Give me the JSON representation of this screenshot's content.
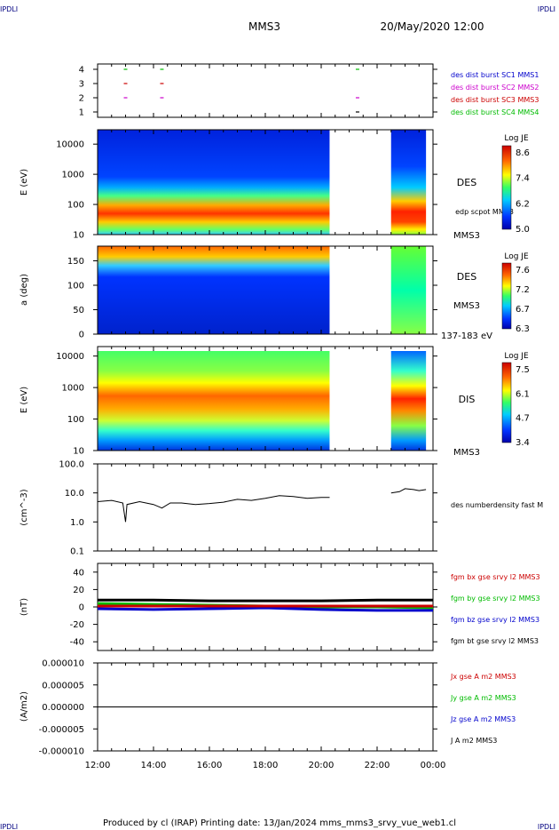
{
  "header": {
    "corner_tl": "IPDLI",
    "corner_tr": "IPDLI",
    "corner_bl": "IPDLI",
    "corner_br": "IPDLI",
    "title": "MMS3",
    "datetime": "20/May/2020 12:00"
  },
  "footer": "Produced by cl (IRAP)   Printing date: 13/Jan/2024   mms_mms3_srvy_vue_web1.cl",
  "time_axis": [
    "12:00",
    "14:00",
    "16:00",
    "18:00",
    "20:00",
    "22:00",
    "00:00"
  ],
  "chart_data": [
    {
      "type": "scatter",
      "yticks": [
        "1",
        "2",
        "3",
        "4"
      ],
      "legend": [
        {
          "text": "des dist burst SC1 MMS1",
          "color": "#0000cc"
        },
        {
          "text": "des dist burst SC2 MMS2",
          "color": "#cc00cc"
        },
        {
          "text": "des dist burst SC3 MMS3",
          "color": "#cc0000"
        },
        {
          "text": "des dist burst SC4 MMS4",
          "color": "#00bb00"
        }
      ],
      "marks": [
        {
          "x": 13.0,
          "y": 4,
          "color": "#00bb00"
        },
        {
          "x": 14.3,
          "y": 4,
          "color": "#00bb00"
        },
        {
          "x": 21.3,
          "y": 4,
          "color": "#00bb00"
        },
        {
          "x": 13.0,
          "y": 3,
          "color": "#cc0000"
        },
        {
          "x": 14.3,
          "y": 3,
          "color": "#cc0000"
        },
        {
          "x": 13.0,
          "y": 2,
          "color": "#cc00cc"
        },
        {
          "x": 14.3,
          "y": 2,
          "color": "#cc00cc"
        },
        {
          "x": 21.3,
          "y": 2,
          "color": "#cc00cc"
        },
        {
          "x": 21.3,
          "y": 1,
          "color": "#000000"
        }
      ]
    },
    {
      "type": "heatmap",
      "ylabel": "E (eV)",
      "yticks": [
        "10000",
        "1000",
        "100",
        "10"
      ],
      "ylim": [
        10,
        30000
      ],
      "log": true,
      "side_labels": [
        "DES",
        "edp scpot MMS3",
        "MMS3"
      ],
      "colorbar": {
        "title": "Log JE",
        "ticks": [
          "8.6",
          "7.4",
          "6.2",
          "5.0"
        ]
      },
      "data_ranges": [
        [
          12.0,
          20.3
        ],
        [
          22.5,
          23.75
        ]
      ]
    },
    {
      "type": "heatmap",
      "ylabel": "a (deg)",
      "yticks": [
        "150",
        "100",
        "50",
        "0"
      ],
      "ylim": [
        0,
        180
      ],
      "side_labels": [
        "DES",
        "MMS3",
        "137-183 eV"
      ],
      "colorbar": {
        "title": "Log JE",
        "ticks": [
          "7.6",
          "7.2",
          "6.7",
          "6.3"
        ]
      },
      "data_ranges": [
        [
          12.0,
          20.3
        ],
        [
          22.5,
          23.75
        ]
      ]
    },
    {
      "type": "heatmap",
      "ylabel": "E (eV)",
      "yticks": [
        "10000",
        "1000",
        "100",
        "10"
      ],
      "ylim": [
        10,
        20000
      ],
      "log": true,
      "side_labels": [
        "DIS",
        "MMS3"
      ],
      "colorbar": {
        "title": "Log JE",
        "ticks": [
          "7.5",
          "6.1",
          "4.7",
          "3.4"
        ]
      },
      "data_ranges": [
        [
          12.0,
          20.3
        ],
        [
          22.5,
          23.75
        ]
      ]
    },
    {
      "type": "line",
      "ylabel": "(cm^-3)",
      "yticks": [
        "100.0",
        "10.0",
        "1.0",
        "0.1"
      ],
      "ylim": [
        0.1,
        100
      ],
      "log": true,
      "legend": [
        {
          "text": "des numberdensity fast M",
          "color": "#000000"
        }
      ],
      "series": [
        {
          "color": "#000000",
          "points": [
            [
              12.0,
              5.0
            ],
            [
              12.5,
              5.5
            ],
            [
              12.9,
              4.5
            ],
            [
              13.0,
              1.0
            ],
            [
              13.05,
              4.0
            ],
            [
              13.5,
              5.0
            ],
            [
              14.0,
              4.0
            ],
            [
              14.3,
              3.0
            ],
            [
              14.6,
              4.5
            ],
            [
              15.0,
              4.5
            ],
            [
              15.5,
              4.0
            ],
            [
              16.0,
              4.3
            ],
            [
              16.5,
              4.8
            ],
            [
              17.0,
              6.0
            ],
            [
              17.5,
              5.5
            ],
            [
              18.0,
              6.5
            ],
            [
              18.5,
              8.0
            ],
            [
              19.0,
              7.5
            ],
            [
              19.5,
              6.5
            ],
            [
              20.0,
              7.0
            ],
            [
              20.3,
              7.0
            ]
          ]
        },
        {
          "color": "#000000",
          "points": [
            [
              22.5,
              10.0
            ],
            [
              22.8,
              11.0
            ],
            [
              23.0,
              14.0
            ],
            [
              23.3,
              13.0
            ],
            [
              23.5,
              12.0
            ],
            [
              23.75,
              13.0
            ]
          ]
        }
      ]
    },
    {
      "type": "line",
      "ylabel": "(nT)",
      "yticks": [
        "40",
        "20",
        "0",
        "-20",
        "-40"
      ],
      "ylim": [
        -50,
        50
      ],
      "legend": [
        {
          "text": "fgm bx gse srvy l2 MMS3",
          "color": "#cc0000"
        },
        {
          "text": "fgm by gse srvy l2 MMS3",
          "color": "#00bb00"
        },
        {
          "text": "fgm bz gse srvy l2 MMS3",
          "color": "#0000cc"
        },
        {
          "text": "fgm bt gse srvy l2 MMS3",
          "color": "#000000"
        }
      ],
      "series": [
        {
          "color": "#00bb00",
          "points": [
            [
              12.0,
              4
            ],
            [
              14.0,
              3
            ],
            [
              16.0,
              2
            ],
            [
              18.0,
              1
            ],
            [
              20.0,
              0
            ],
            [
              22.0,
              0
            ],
            [
              24.0,
              -1
            ]
          ]
        },
        {
          "color": "#0000cc",
          "points": [
            [
              12.0,
              -2
            ],
            [
              14.0,
              -3
            ],
            [
              16.0,
              -2
            ],
            [
              18.0,
              -1
            ],
            [
              20.0,
              -3
            ],
            [
              22.0,
              -4
            ],
            [
              24.0,
              -4
            ]
          ]
        },
        {
          "color": "#cc0000",
          "points": [
            [
              12.0,
              1
            ],
            [
              14.0,
              1
            ],
            [
              16.0,
              1
            ],
            [
              18.0,
              1
            ],
            [
              20.0,
              1
            ],
            [
              22.0,
              1
            ],
            [
              24.0,
              1
            ]
          ]
        },
        {
          "color": "#000000",
          "points": [
            [
              12.0,
              8
            ],
            [
              14.0,
              8
            ],
            [
              16.0,
              7
            ],
            [
              18.0,
              7
            ],
            [
              20.0,
              7
            ],
            [
              22.0,
              8
            ],
            [
              24.0,
              8
            ]
          ]
        }
      ]
    },
    {
      "type": "line",
      "ylabel": "(A/m2)",
      "yticks": [
        "0.000010",
        "0.000005",
        "0.000000",
        "-0.000005",
        "-0.000010"
      ],
      "ylim": [
        -1e-05,
        1e-05
      ],
      "legend": [
        {
          "text": "Jx gse A m2 MMS3",
          "color": "#cc0000"
        },
        {
          "text": "Jy gse A m2 MMS3",
          "color": "#00bb00"
        },
        {
          "text": "Jz gse A m2 MMS3",
          "color": "#0000cc"
        },
        {
          "text": "J A m2 MMS3",
          "color": "#000000"
        }
      ],
      "series": [
        {
          "color": "#000000",
          "points": [
            [
              12.0,
              0
            ],
            [
              24.0,
              0
            ]
          ]
        }
      ]
    }
  ]
}
